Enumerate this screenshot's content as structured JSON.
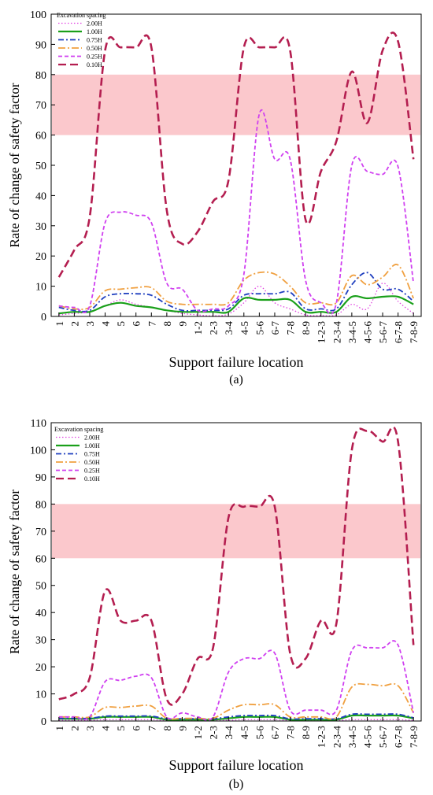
{
  "chart_data": [
    {
      "type": "line",
      "panel_label": "(a)",
      "xlabel": "Support failure location",
      "ylabel": "Rate of change of safety factor",
      "ylim": [
        0,
        100
      ],
      "yticks": [
        0,
        10,
        20,
        30,
        40,
        50,
        60,
        70,
        80,
        90,
        100
      ],
      "grid": false,
      "legend": {
        "title": "Excavation spacing",
        "position": "top-left"
      },
      "highlight_band": {
        "y": [
          60,
          80
        ],
        "color": "#fbc8cc"
      },
      "categories": [
        "1",
        "2",
        "3",
        "4",
        "5",
        "6",
        "7",
        "8",
        "9",
        "1-2",
        "2-3",
        "3-4",
        "4-5",
        "5-6",
        "6-7",
        "7-8",
        "8-9",
        "1-2-3",
        "2-3-4",
        "3-4-5",
        "4-5-6",
        "5-6-7",
        "6-7-8",
        "7-8-9"
      ],
      "series": [
        {
          "name": "2.00H",
          "color": "#e040e0",
          "dash": "1.5,2.5",
          "width": 1.3,
          "values": [
            0.5,
            1,
            1.5,
            3.5,
            5.5,
            4,
            3,
            2,
            1,
            0.5,
            0.2,
            0.8,
            4.5,
            10,
            4.5,
            2.5,
            0.5,
            0.3,
            0.5,
            4,
            2.5,
            11,
            5,
            1
          ]
        },
        {
          "name": "1.00H",
          "color": "#1aa01a",
          "dash": "",
          "width": 2.2,
          "values": [
            1,
            1.5,
            1.5,
            3.5,
            4.5,
            3.5,
            3,
            2,
            1.5,
            1.5,
            1.5,
            1.5,
            6,
            5.5,
            5.5,
            5.5,
            1.5,
            1.5,
            1.5,
            6.5,
            6,
            6.5,
            6.5,
            4
          ]
        },
        {
          "name": "0.75H",
          "color": "#1f3fbf",
          "dash": "7,3,2,3",
          "width": 1.8,
          "values": [
            3,
            2,
            2,
            6.5,
            7.5,
            7.5,
            7,
            4,
            2,
            2,
            2,
            2.5,
            7,
            7.5,
            7.5,
            8,
            2.5,
            2.5,
            2.5,
            10.5,
            14.5,
            9,
            9,
            5
          ]
        },
        {
          "name": "0.50H",
          "color": "#f0a040",
          "dash": "9,3,2,3",
          "width": 1.8,
          "values": [
            3.5,
            2.5,
            3,
            8.5,
            9,
            9.5,
            9.5,
            5,
            4,
            4,
            4,
            4.5,
            12,
            14.5,
            14,
            10,
            4.5,
            4.5,
            4.5,
            13.5,
            10.5,
            13,
            17,
            6
          ]
        },
        {
          "name": "0.25H",
          "color": "#d040f0",
          "dash": "5,3",
          "width": 1.8,
          "values": [
            3.5,
            3,
            3.5,
            31,
            34.5,
            33.5,
            31,
            11,
            9,
            2,
            2.5,
            3.5,
            14,
            67,
            52,
            52,
            12,
            4.5,
            4.5,
            50,
            48,
            47,
            49.5,
            11
          ]
        },
        {
          "name": "0.10H",
          "color": "#b41e50",
          "dash": "10,5",
          "width": 2.6,
          "values": [
            13,
            22,
            33,
            88,
            89,
            89,
            89,
            35,
            24,
            28,
            38,
            45,
            89,
            89,
            89,
            88,
            32,
            48,
            58,
            81,
            64,
            88,
            91,
            52
          ]
        }
      ]
    },
    {
      "type": "line",
      "panel_label": "(b)",
      "xlabel": "Support failure location",
      "ylabel": "Rate of change of safety factor",
      "ylim": [
        0,
        110
      ],
      "yticks": [
        0,
        10,
        20,
        30,
        40,
        50,
        60,
        70,
        80,
        90,
        100,
        110
      ],
      "grid": false,
      "legend": {
        "title": "Excavation spacing",
        "position": "top-left"
      },
      "highlight_band": {
        "y": [
          60,
          80
        ],
        "color": "#fbc8cc"
      },
      "categories": [
        "1",
        "2",
        "3",
        "4",
        "5",
        "6",
        "7",
        "8",
        "9",
        "1-2",
        "2-3",
        "3-4",
        "4-5",
        "5-6",
        "6-7",
        "7-8",
        "8-9",
        "1-2-3",
        "2-3-4",
        "3-4-5",
        "4-5-6",
        "5-6-7",
        "6-7-8",
        "7-8-9"
      ],
      "series": [
        {
          "name": "2.00H",
          "color": "#e040e0",
          "dash": "1.5,2.5",
          "width": 1.3,
          "values": [
            0.3,
            0.3,
            0.3,
            0.5,
            0.5,
            0.5,
            0.5,
            0.2,
            0.2,
            0.2,
            0.2,
            0.3,
            0.5,
            0.5,
            0.5,
            0.2,
            0.2,
            0.2,
            0.2,
            0.5,
            0.5,
            0.5,
            0.5,
            0.3
          ]
        },
        {
          "name": "1.00H",
          "color": "#1aa01a",
          "dash": "",
          "width": 2.2,
          "values": [
            0.8,
            0.8,
            0.8,
            1.5,
            1.5,
            1.5,
            1.5,
            0.5,
            0.5,
            0.5,
            0.5,
            1,
            1.5,
            1.5,
            1.5,
            0.5,
            0.5,
            0.5,
            0.5,
            2,
            2,
            2,
            2,
            1
          ]
        },
        {
          "name": "0.75H",
          "color": "#1f3fbf",
          "dash": "7,3,2,3",
          "width": 1.8,
          "values": [
            1,
            1,
            1,
            1.8,
            1.8,
            1.8,
            1.8,
            0.8,
            0.8,
            0.8,
            0.8,
            1.5,
            2,
            2,
            2,
            0.8,
            0.8,
            0.8,
            0.8,
            2.5,
            2.5,
            2.5,
            2.5,
            1.2
          ]
        },
        {
          "name": "0.50H",
          "color": "#f0a040",
          "dash": "9,3,2,3",
          "width": 1.8,
          "values": [
            1.5,
            1.5,
            1.5,
            5,
            5,
            5.5,
            5.5,
            1,
            1,
            1,
            1,
            4,
            6,
            6,
            6,
            1.5,
            1.5,
            1.5,
            1.5,
            12.5,
            13.5,
            13,
            13,
            3
          ]
        },
        {
          "name": "0.25H",
          "color": "#d040f0",
          "dash": "5,3",
          "width": 1.8,
          "values": [
            1.5,
            1.5,
            1.5,
            14.5,
            15,
            16.5,
            16,
            1.5,
            3,
            1.5,
            1.5,
            18,
            23,
            23,
            25,
            4,
            4,
            4,
            4,
            26,
            27,
            27,
            28,
            3
          ]
        },
        {
          "name": "0.10H",
          "color": "#b41e50",
          "dash": "10,5",
          "width": 2.6,
          "values": [
            8,
            10,
            16,
            48,
            37,
            37,
            37,
            8,
            10,
            23,
            27,
            75,
            79,
            79,
            79,
            25,
            23,
            37,
            36,
            100,
            107,
            103,
            103,
            28
          ]
        }
      ]
    }
  ]
}
